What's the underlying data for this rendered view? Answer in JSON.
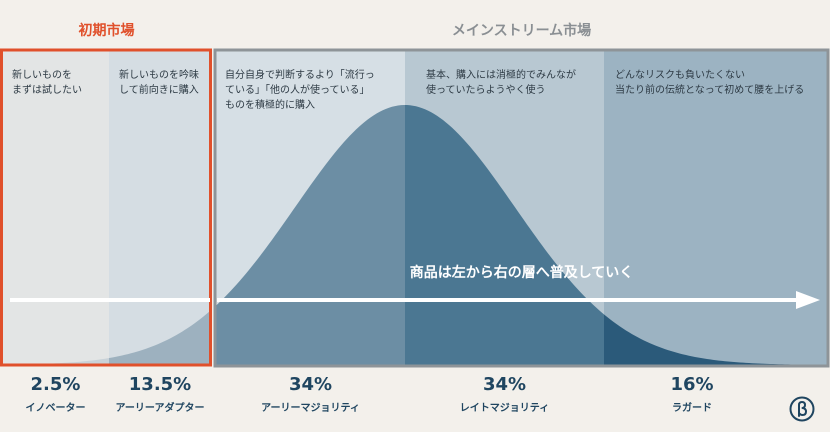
{
  "colors": {
    "background": "#f3f0eb",
    "early_border": "#e0502b",
    "mainstream_border": "#8e9498",
    "early_header": "#e0502b",
    "mainstream_header": "#8a8f93",
    "navy": "#1f4560"
  },
  "headers": {
    "early_market": "初期市場",
    "mainstream_market": "メインストリーム市場"
  },
  "segments": [
    {
      "percent": "2.5%",
      "name": "イノベーター",
      "description": "新しいものを\nまずは試したい"
    },
    {
      "percent": "13.5%",
      "name": "アーリーアダプター",
      "description": "新しいものを吟味\nして前向きに購入"
    },
    {
      "percent": "34%",
      "name": "アーリーマジョリティ",
      "description": "自分自身で判断するより「流行っ\nている」「他の人が使っている」\nものを積極的に購入"
    },
    {
      "percent": "34%",
      "name": "レイトマジョリティ",
      "description": "基本、購入には消極的でみんなが\n使っていたらようやく使う"
    },
    {
      "percent": "16%",
      "name": "ラガード",
      "description": "どんなリスクも負いたくない\n当たり前の伝統となって初めて腰を上げる"
    }
  ],
  "arrow_label": "商品は左から右の層へ普及していく",
  "logo_icon": "b-circle-logo-icon"
}
